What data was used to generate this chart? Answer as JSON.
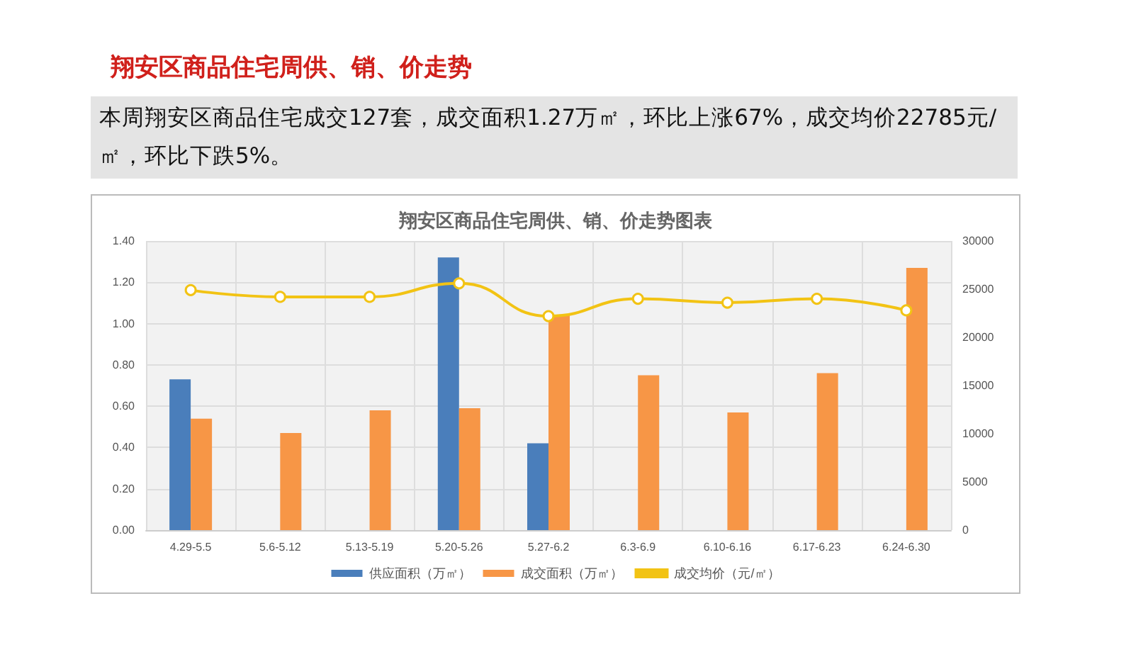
{
  "chart_data": {
    "type": "bar",
    "title": "翔安区商品住宅周供、销、价走势图表",
    "annotations": [
      "翔安区商品住宅周供、销、价走势",
      "本周翔安区商品住宅成交127套，成交面积1.27万㎡，环比上涨67%，成交均价22785元/㎡，环比下跌5%。"
    ],
    "categories": [
      "4.29-5.5",
      "5.6-5.12",
      "5.13-5.19",
      "5.20-5.26",
      "5.27-6.2",
      "6.3-6.9",
      "6.10-6.16",
      "6.17-6.23",
      "6.24-6.30"
    ],
    "series": [
      {
        "name": "供应面积（万㎡）",
        "color": "#4a7ebb",
        "values": [
          0.73,
          null,
          null,
          1.32,
          0.42,
          null,
          null,
          null,
          null
        ]
      },
      {
        "name": "成交面积（万㎡）",
        "color": "#f79646",
        "values": [
          0.54,
          0.47,
          0.58,
          0.59,
          1.04,
          0.75,
          0.57,
          0.76,
          1.27
        ]
      },
      {
        "name": "成交均价（元/㎡）",
        "type": "line",
        "axis": "y2",
        "color": "#f2c314",
        "marker": "circle",
        "values": [
          24900,
          24200,
          24200,
          25600,
          22200,
          24000,
          23600,
          24000,
          22800
        ]
      }
    ],
    "ylim": [
      0,
      1.4
    ],
    "yticks": [
      {
        "value": 0,
        "label": "0.00"
      },
      {
        "value": 0.2,
        "label": "0.20"
      },
      {
        "value": 0.4,
        "label": "0.40"
      },
      {
        "value": 0.6,
        "label": "0.60"
      },
      {
        "value": 0.8,
        "label": "0.80"
      },
      {
        "value": 1,
        "label": "1.00"
      },
      {
        "value": 1.2,
        "label": "1.20"
      },
      {
        "value": 1.4,
        "label": "1.40"
      }
    ],
    "y2lim": [
      0,
      30000
    ],
    "y2ticks": [
      0,
      5000,
      10000,
      15000,
      20000,
      25000,
      30000
    ],
    "grid": true,
    "legend": "bottom"
  }
}
